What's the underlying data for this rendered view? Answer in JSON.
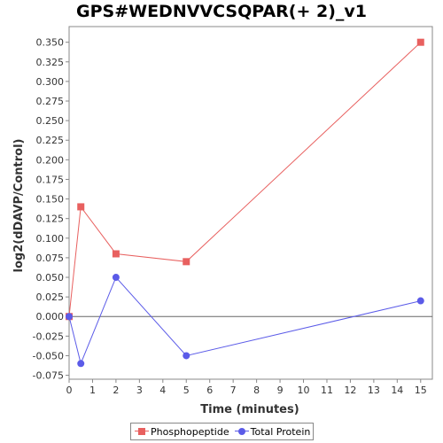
{
  "chart_data": {
    "type": "line",
    "title": "GPS#WEDNVVCSQPAR(+ 2)_v1",
    "xlabel": "Time (minutes)",
    "ylabel": "log2(dDAVP/Control)",
    "xlim": [
      0,
      15.5
    ],
    "ylim": [
      -0.08,
      0.37
    ],
    "x_ticks": [
      0,
      1,
      2,
      3,
      4,
      5,
      6,
      7,
      8,
      9,
      10,
      11,
      12,
      13,
      14,
      15
    ],
    "y_ticks": [
      -0.075,
      -0.05,
      -0.025,
      0.0,
      0.025,
      0.05,
      0.075,
      0.1,
      0.125,
      0.15,
      0.175,
      0.2,
      0.225,
      0.25,
      0.275,
      0.3,
      0.325,
      0.35
    ],
    "y_tick_labels": [
      "-0.075",
      "-0.050",
      "-0.025",
      "0.000",
      "0.025",
      "0.050",
      "0.075",
      "0.100",
      "0.125",
      "0.150",
      "0.175",
      "0.200",
      "0.225",
      "0.250",
      "0.275",
      "0.300",
      "0.325",
      "0.350"
    ],
    "zero_line": true,
    "grid": false,
    "legend_position": "bottom",
    "series": [
      {
        "name": "Phosphopeptide",
        "color": "#e8605f",
        "marker": "square",
        "x": [
          0,
          0.5,
          2,
          5,
          15
        ],
        "y": [
          0.0,
          0.14,
          0.08,
          0.07,
          0.35
        ]
      },
      {
        "name": "Total Protein",
        "color": "#5b5be8",
        "marker": "circle",
        "x": [
          0,
          0.5,
          2,
          5,
          15
        ],
        "y": [
          0.0,
          -0.06,
          0.05,
          -0.05,
          0.02
        ]
      }
    ]
  }
}
